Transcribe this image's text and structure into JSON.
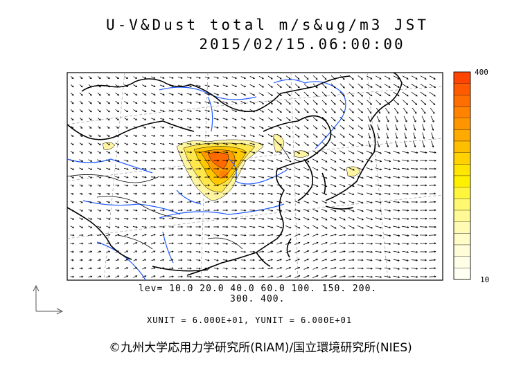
{
  "title": "U-V&Dust total m/s&ug/m3 JST",
  "datetime": "2015/02/15.06:00:00",
  "levels_line1": "lev= 10.0 20.0 40.0 60.0 100. 150. 200.",
  "levels_line2": "300. 400.",
  "unit_line": "XUNIT = 6.000E+01, YUNIT = 6.000E+01",
  "credit": "©九州大学応用力学研究所(RIAM)/国立環境研究所(NIES)",
  "colorbar": {
    "max_label": "400",
    "min_label": "10",
    "colors": [
      "#ff4500",
      "#ff5a00",
      "#ff6e00",
      "#ff8200",
      "#ff9600",
      "#ffaa00",
      "#ffbe00",
      "#ffd200",
      "#ffe600",
      "#fff000",
      "#fff53c",
      "#fff870",
      "#fffa96",
      "#fffbb4",
      "#fffcc8",
      "#fffdd8",
      "#fffee6",
      "#fffff2"
    ]
  },
  "chart_data": {
    "type": "map",
    "variable": "dust total concentration and wind vectors",
    "levels": [
      10,
      20,
      40,
      60,
      100,
      150,
      200,
      300,
      400
    ],
    "colors": {
      "coast": "#000000",
      "rivers": "#1e5aff",
      "grid": "#808080",
      "vectors": "#000000"
    }
  }
}
